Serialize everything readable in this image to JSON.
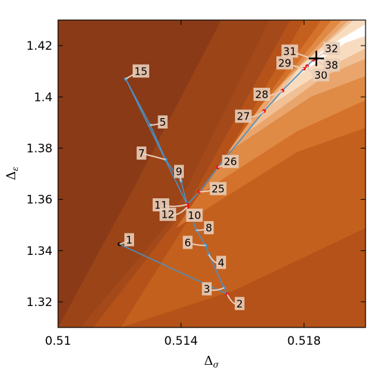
{
  "chart_data": {
    "type": "line",
    "title": "",
    "xlabel": "Δσ",
    "ylabel": "Δε",
    "xlim": [
      0.51,
      0.52
    ],
    "ylim": [
      1.31,
      1.43
    ],
    "xticks": [
      {
        "value": 0.51,
        "label": "0.51"
      },
      {
        "value": 0.514,
        "label": "0.514"
      },
      {
        "value": 0.518,
        "label": "0.518"
      }
    ],
    "yticks": [
      {
        "value": 1.32,
        "label": "1.32"
      },
      {
        "value": 1.34,
        "label": "1.34"
      },
      {
        "value": 1.36,
        "label": "1.36"
      },
      {
        "value": 1.38,
        "label": "1.38"
      },
      {
        "value": 1.4,
        "label": "1.4"
      },
      {
        "value": 1.42,
        "label": "1.42"
      }
    ],
    "grid": false,
    "background": "filled contour regions (dark brown to white)",
    "colors": {
      "path_line": "#4a90c4",
      "blue_point": "#4a90c4",
      "red_point": "#e81010",
      "start_point": "#111111",
      "label_box": "#e8cdb8",
      "contour_darkest": "#8c3a17",
      "contour_lightest": "#ffffff"
    },
    "points": [
      {
        "label": "1",
        "x": 0.512,
        "y": 1.3425,
        "color": "black"
      },
      {
        "label": "2",
        "x": 0.5155,
        "y": 1.323,
        "color": "red"
      },
      {
        "label": "3",
        "x": 0.5154,
        "y": 1.3255,
        "color": "blue"
      },
      {
        "label": "4",
        "x": 0.5149,
        "y": 1.3385,
        "color": "blue"
      },
      {
        "label": "5",
        "x": 0.513,
        "y": 1.389,
        "color": "blue"
      },
      {
        "label": "6",
        "x": 0.5148,
        "y": 1.342,
        "color": "blue"
      },
      {
        "label": "7",
        "x": 0.5135,
        "y": 1.3755,
        "color": "blue"
      },
      {
        "label": "8",
        "x": 0.5145,
        "y": 1.348,
        "color": "blue"
      },
      {
        "label": "9",
        "x": 0.514,
        "y": 1.367,
        "color": "blue"
      },
      {
        "label": "10",
        "x": 0.5143,
        "y": 1.3545,
        "color": "blue"
      },
      {
        "label": "11",
        "x": 0.5142,
        "y": 1.358,
        "color": "red"
      },
      {
        "label": "12",
        "x": 0.5142,
        "y": 1.357,
        "color": "red"
      },
      {
        "label": "15",
        "x": 0.5122,
        "y": 1.407,
        "color": "blue"
      },
      {
        "label": "25",
        "x": 0.5146,
        "y": 1.363,
        "color": "red"
      },
      {
        "label": "26",
        "x": 0.5152,
        "y": 1.3725,
        "color": "red"
      },
      {
        "label": "27",
        "x": 0.5167,
        "y": 1.3945,
        "color": "red"
      },
      {
        "label": "28",
        "x": 0.5173,
        "y": 1.4025,
        "color": "red"
      },
      {
        "label": "29",
        "x": 0.518,
        "y": 1.411,
        "color": "red"
      },
      {
        "label": "30",
        "x": 0.5181,
        "y": 1.412,
        "color": "red"
      },
      {
        "label": "31",
        "x": 0.5183,
        "y": 1.4145,
        "color": "red"
      },
      {
        "label": "32",
        "x": 0.5184,
        "y": 1.415,
        "color": "red"
      },
      {
        "label": "38",
        "x": 0.5184,
        "y": 1.415,
        "color": "red"
      }
    ],
    "path_order": [
      "1",
      "2",
      "3",
      "4",
      "6",
      "8",
      "10",
      "12",
      "11",
      "9",
      "7",
      "5",
      "15",
      "11",
      "25",
      "26",
      "27",
      "28",
      "29",
      "30",
      "31",
      "32",
      "38"
    ],
    "optimum_marker": {
      "x": 0.5184,
      "y": 1.415,
      "shape": "plus"
    }
  }
}
